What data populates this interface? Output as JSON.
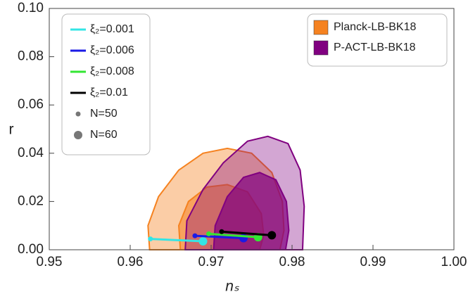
{
  "chart_data": {
    "type": "contour-line",
    "xlabel": "nₛ",
    "ylabel": "r",
    "xlim": [
      0.95,
      1.0
    ],
    "ylim": [
      0,
      0.1
    ],
    "xticks": [
      0.95,
      0.96,
      0.97,
      0.98,
      0.99,
      {
        "value": 1.0,
        "label": "1.00"
      }
    ],
    "yticks": [
      {
        "value": 0,
        "label": "0.00"
      },
      0.02,
      0.04,
      0.06,
      0.08,
      {
        "value": 0.1,
        "label": "0.10"
      }
    ],
    "contours": [
      {
        "name": "Planck-LB-BK18",
        "color": "#f58220",
        "levels": [
          {
            "x": [
              0.9624,
              0.9622,
              0.9635,
              0.966,
              0.969,
              0.972,
              0.975,
              0.9775,
              0.9788,
              0.979,
              0.9785
            ],
            "y": [
              0,
              0.01,
              0.022,
              0.033,
              0.04,
              0.042,
              0.04,
              0.032,
              0.02,
              0.008,
              0
            ]
          },
          {
            "x": [
              0.9662,
              0.966,
              0.9672,
              0.9695,
              0.972,
              0.9745,
              0.9762,
              0.9765,
              0.976
            ],
            "y": [
              0,
              0.01,
              0.02,
              0.026,
              0.027,
              0.024,
              0.015,
              0.006,
              0
            ]
          }
        ]
      },
      {
        "name": "P-ACT-LB-BK18",
        "color": "#800080",
        "levels": [
          {
            "x": [
              0.9668,
              0.967,
              0.969,
              0.9715,
              0.9745,
              0.977,
              0.9795,
              0.981,
              0.9815,
              0.9813
            ],
            "y": [
              0,
              0.012,
              0.025,
              0.036,
              0.045,
              0.047,
              0.044,
              0.033,
              0.018,
              0
            ]
          },
          {
            "x": [
              0.9703,
              0.9705,
              0.972,
              0.974,
              0.976,
              0.978,
              0.9793,
              0.9796,
              0.9792
            ],
            "y": [
              0,
              0.01,
              0.022,
              0.03,
              0.032,
              0.029,
              0.02,
              0.008,
              0
            ]
          }
        ]
      }
    ],
    "series": [
      {
        "name": "ξ₂=0.001",
        "color": "#33e5e5",
        "x": [
          0.9625,
          0.969
        ],
        "y": [
          0.0045,
          0.0035
        ]
      },
      {
        "name": "ξ₂=0.006",
        "color": "#1a1ae6",
        "x": [
          0.968,
          0.974
        ],
        "y": [
          0.0058,
          0.0048
        ]
      },
      {
        "name": "ξ₂=0.008",
        "color": "#33e633",
        "x": [
          0.9697,
          0.9758
        ],
        "y": [
          0.0066,
          0.0052
        ]
      },
      {
        "name": "ξ₂=0.01",
        "color": "#000000",
        "x": [
          0.9713,
          0.9775
        ],
        "y": [
          0.0075,
          0.006
        ]
      }
    ],
    "point_legend": [
      "N=50",
      "N=60"
    ]
  }
}
